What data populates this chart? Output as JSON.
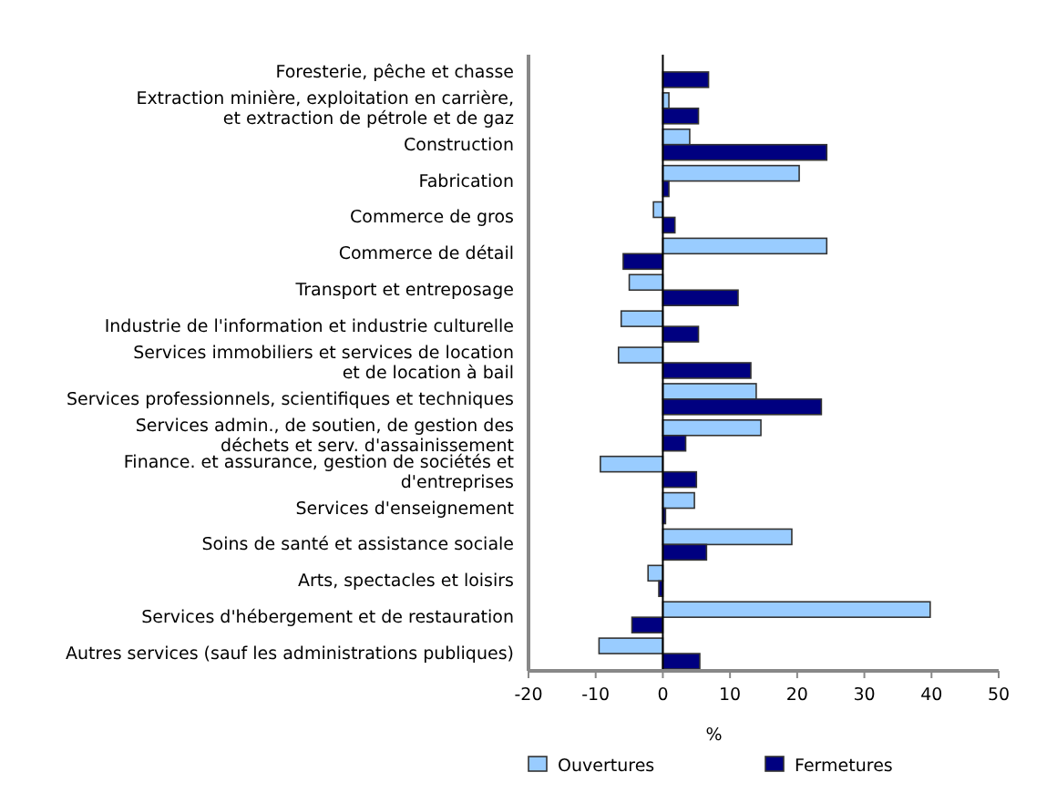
{
  "chart_data": {
    "type": "bar",
    "orientation": "horizontal",
    "xlabel": "%",
    "categories": [
      "Foresterie, pêche et chasse",
      "Extraction minière, exploitation en carrière,\net extraction de pétrole et de gaz",
      "Construction",
      "Fabrication",
      "Commerce de gros",
      "Commerce de détail",
      "Transport et entreposage",
      "Industrie de l'information et industrie culturelle",
      "Services immobiliers et services de location\net de location à bail",
      "Services professionnels, scientifiques et techniques",
      "Services admin., de soutien, de gestion des\ndéchets et serv. d'assainissement",
      "Finance. et assurance, gestion de sociétés et\nd'entreprises",
      "Services d'enseignement",
      "Soins de santé et assistance sociale",
      "Arts, spectacles et loisirs",
      "Services d'hébergement et de restauration",
      "Autres services (sauf les administrations publiques)"
    ],
    "series": [
      {
        "name": "Ouvertures",
        "color": "#99ccff",
        "values": [
          0,
          0.9,
          4.0,
          20.3,
          -1.4,
          24.4,
          -5.0,
          -6.2,
          -6.6,
          13.9,
          14.6,
          -9.3,
          4.7,
          19.2,
          -2.2,
          39.8,
          -9.5
        ]
      },
      {
        "name": "Fermetures",
        "color": "#000080",
        "values": [
          6.8,
          5.3,
          24.4,
          0.9,
          1.8,
          -5.9,
          11.2,
          5.3,
          13.1,
          23.6,
          3.4,
          5.0,
          0.4,
          6.5,
          -0.6,
          -4.6,
          5.5
        ]
      }
    ],
    "xlim": [
      -20,
      50
    ],
    "xticks": [
      -20,
      -10,
      0,
      10,
      20,
      30,
      40,
      50
    ],
    "legend": "bottom"
  }
}
